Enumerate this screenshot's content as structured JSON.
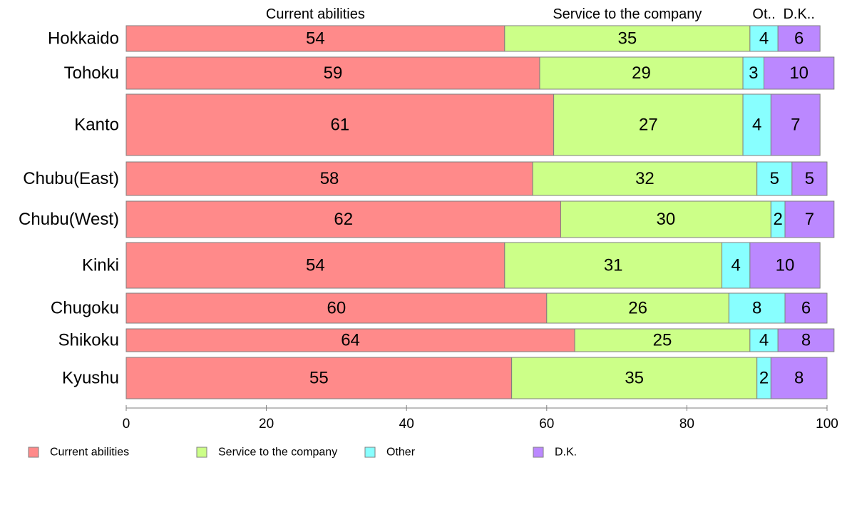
{
  "chart_data": {
    "type": "bar",
    "orientation": "horizontal",
    "stacked": true,
    "categories": [
      "Hokkaido",
      "Tohoku",
      "Kanto",
      "Chubu(East)",
      "Chubu(West)",
      "Kinki",
      "Chugoku",
      "Shikoku",
      "Kyushu"
    ],
    "series": [
      {
        "name": "Current abilities",
        "color": "#FF8A8A",
        "values": [
          54,
          59,
          61,
          58,
          62,
          54,
          60,
          64,
          55
        ]
      },
      {
        "name": "Service to the company",
        "color": "#CCFF88",
        "values": [
          35,
          29,
          27,
          32,
          30,
          31,
          26,
          25,
          35
        ]
      },
      {
        "name": "Other",
        "color": "#88FFFF",
        "values": [
          4,
          3,
          4,
          5,
          2,
          4,
          8,
          4,
          2
        ]
      },
      {
        "name": "D.K.",
        "color": "#BB88FF",
        "values": [
          6,
          10,
          7,
          5,
          7,
          10,
          6,
          8,
          8
        ]
      }
    ],
    "top_labels": [
      "Current abilities",
      "Service to the company",
      "Ot..",
      "D.K.."
    ],
    "xlim": [
      0,
      100
    ],
    "xticks": [
      0,
      20,
      40,
      60,
      80,
      100
    ],
    "xlabel": "",
    "ylabel": "",
    "title": "",
    "legend_position": "bottom",
    "grid": false
  }
}
